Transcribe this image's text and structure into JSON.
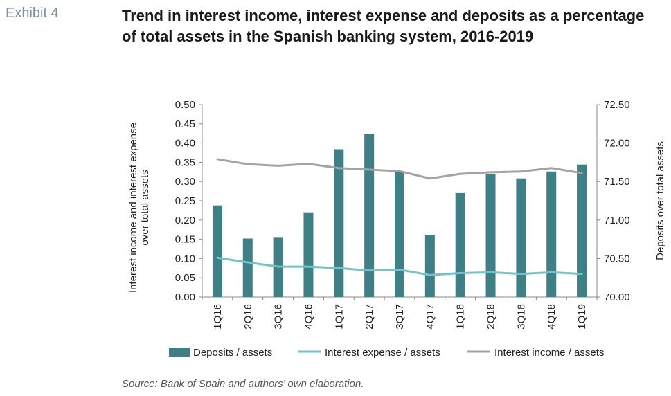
{
  "exhibit_label": "Exhibit 4",
  "title": "Trend in interest income, interest expense and deposits as a percentage of total assets in the Spanish banking system, 2016-2019",
  "source": "Source: Bank of Spain and authors’ own elaboration.",
  "colors": {
    "deposits": "#3f7f86",
    "interest_expense": "#72c2c8",
    "interest_income": "#a3a3a3"
  },
  "chart_data": {
    "type": "bar",
    "categories": [
      "1Q16",
      "2Q16",
      "3Q16",
      "4Q16",
      "1Q17",
      "2Q17",
      "3Q17",
      "4Q17",
      "1Q18",
      "2Q18",
      "3Q18",
      "4Q18",
      "1Q19"
    ],
    "y_left": {
      "label": "Interest income and interest expense over total assets",
      "ticks": [
        "0.00",
        "0.05",
        "0.10",
        "0.15",
        "0.20",
        "0.25",
        "0.30",
        "0.35",
        "0.40",
        "0.45",
        "0.50"
      ],
      "lim": [
        0,
        0.5
      ]
    },
    "y_right": {
      "label": "Deposits over total assets",
      "ticks": [
        "70.00",
        "70.50",
        "71.00",
        "71.50",
        "72.00",
        "72.50"
      ],
      "lim": [
        70,
        72.5
      ]
    },
    "series": [
      {
        "name": "Deposits / assets",
        "type": "bar",
        "axis": "right",
        "values": [
          71.19,
          70.76,
          70.77,
          71.1,
          71.92,
          72.12,
          71.62,
          70.81,
          71.35,
          71.6,
          71.54,
          71.63,
          71.72
        ]
      },
      {
        "name": "Interest expense / assets",
        "type": "line",
        "axis": "left",
        "values": [
          0.102,
          0.09,
          0.079,
          0.079,
          0.075,
          0.069,
          0.071,
          0.057,
          0.062,
          0.064,
          0.06,
          0.064,
          0.06
        ]
      },
      {
        "name": "Interest income / assets",
        "type": "line",
        "axis": "left",
        "values": [
          0.358,
          0.345,
          0.341,
          0.346,
          0.335,
          0.331,
          0.327,
          0.308,
          0.32,
          0.324,
          0.326,
          0.335,
          0.322
        ]
      }
    ],
    "legend_position": "bottom",
    "grid": false
  }
}
